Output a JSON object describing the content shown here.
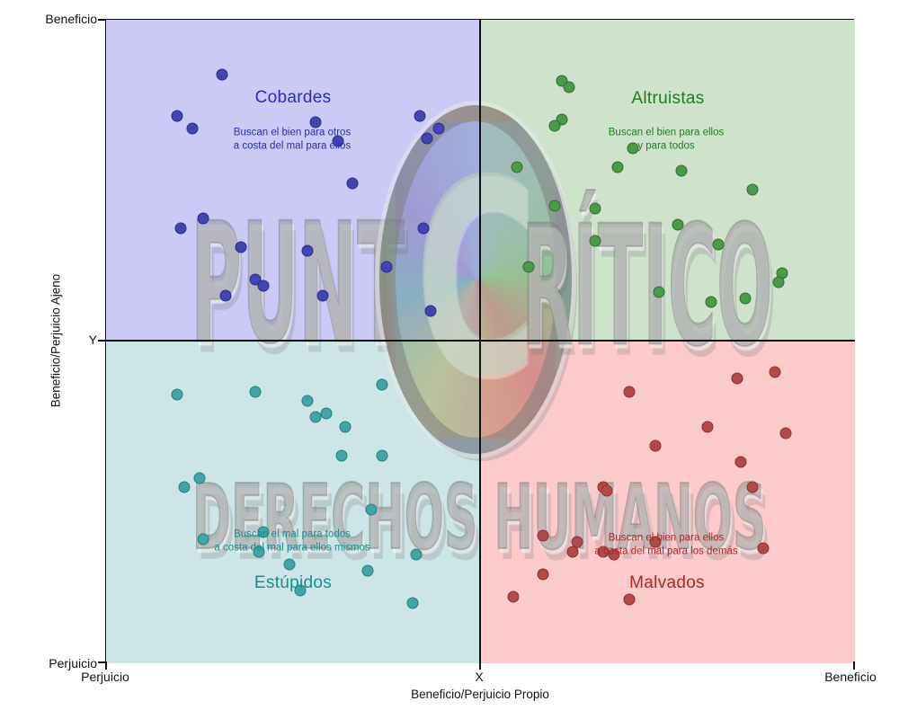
{
  "axes": {
    "x": {
      "title": "Beneficio/Perjuicio Propio",
      "tick_left": "Perjuicio",
      "tick_center": "X",
      "tick_right": "Beneficio"
    },
    "y": {
      "title": "Beneficio/Perjuicio Ajeno",
      "tick_top": "Beneficio",
      "tick_center": "Y",
      "tick_bottom": "Perjuicio"
    }
  },
  "quadrants": {
    "cobardes": {
      "title": "Cobardes",
      "subtitle_line1": "Buscan el bien para otros",
      "subtitle_line2": "a costa del mal para ellos",
      "bg": "#cacaf5",
      "text_color": "#2c2cae"
    },
    "altruistas": {
      "title": "Altruistas",
      "subtitle_line1": "Buscan el bien para ellos",
      "subtitle_line2": "y para todos",
      "bg": "#cfe2cc",
      "text_color": "#1e7e1e"
    },
    "estupidos": {
      "title": "Estúpidos",
      "subtitle_line1": "Buscan el mal para todos",
      "subtitle_line2": "a costa del mal para ellos mismos",
      "bg": "#cde5e6",
      "text_color": "#149090"
    },
    "malvados": {
      "title": "Malvados",
      "subtitle_line1": "Buscan el bien para ellos",
      "subtitle_line2": "a costa del mal para los demás",
      "bg": "#fbcbcb",
      "text_color": "#b32424"
    }
  },
  "watermark": {
    "brand_left": "PUNT",
    "logo_letter": "C",
    "brand_right": "RÍTICO",
    "footer": "DERECHOS HUMANOS"
  },
  "chart_data": {
    "type": "scatter",
    "title": "",
    "xlabel": "Beneficio/Perjuicio Propio",
    "ylabel": "Beneficio/Perjuicio Ajeno",
    "x_ticks": [
      "Perjuicio",
      "X",
      "Beneficio"
    ],
    "y_ticks": [
      "Perjuicio",
      "Y",
      "Beneficio"
    ],
    "xlim": [
      -1,
      1
    ],
    "ylim": [
      -1,
      1
    ],
    "grid": false,
    "legend": "none",
    "quadrant_labels": [
      "Cobardes",
      "Altruistas",
      "Estúpidos",
      "Malvados"
    ],
    "series": [
      {
        "name": "Cobardes",
        "color": "#4244b4",
        "edge_color": "#2b2d8c",
        "points": [
          [
            -0.69,
            0.83
          ],
          [
            -0.81,
            0.7
          ],
          [
            -0.77,
            0.66
          ],
          [
            -0.44,
            0.68
          ],
          [
            -0.38,
            0.62
          ],
          [
            -0.16,
            0.7
          ],
          [
            -0.11,
            0.66
          ],
          [
            -0.14,
            0.63
          ],
          [
            -0.34,
            0.49
          ],
          [
            -0.74,
            0.38
          ],
          [
            -0.8,
            0.35
          ],
          [
            -0.64,
            0.29
          ],
          [
            -0.46,
            0.28
          ],
          [
            -0.6,
            0.19
          ],
          [
            -0.58,
            0.17
          ],
          [
            -0.68,
            0.14
          ],
          [
            -0.42,
            0.14
          ],
          [
            -0.25,
            0.23
          ],
          [
            -0.15,
            0.35
          ],
          [
            -0.13,
            0.09
          ]
        ]
      },
      {
        "name": "Altruistas",
        "color": "#4a9a4a",
        "edge_color": "#2f7030",
        "points": [
          [
            0.22,
            0.81
          ],
          [
            0.24,
            0.79
          ],
          [
            0.22,
            0.69
          ],
          [
            0.2,
            0.67
          ],
          [
            0.41,
            0.6
          ],
          [
            0.37,
            0.54
          ],
          [
            0.1,
            0.54
          ],
          [
            0.54,
            0.53
          ],
          [
            0.73,
            0.47
          ],
          [
            0.2,
            0.42
          ],
          [
            0.31,
            0.41
          ],
          [
            0.53,
            0.36
          ],
          [
            0.31,
            0.31
          ],
          [
            0.64,
            0.3
          ],
          [
            0.13,
            0.23
          ],
          [
            0.81,
            0.21
          ],
          [
            0.8,
            0.18
          ],
          [
            0.48,
            0.15
          ],
          [
            0.71,
            0.13
          ],
          [
            0.62,
            0.12
          ]
        ]
      },
      {
        "name": "Estúpidos",
        "color": "#3fa5a5",
        "edge_color": "#277f80",
        "points": [
          [
            -0.26,
            -0.14
          ],
          [
            -0.6,
            -0.16
          ],
          [
            -0.81,
            -0.17
          ],
          [
            -0.46,
            -0.19
          ],
          [
            -0.44,
            -0.24
          ],
          [
            -0.41,
            -0.23
          ],
          [
            -0.36,
            -0.27
          ],
          [
            -0.37,
            -0.36
          ],
          [
            -0.26,
            -0.36
          ],
          [
            -0.75,
            -0.43
          ],
          [
            -0.79,
            -0.46
          ],
          [
            -0.29,
            -0.53
          ],
          [
            -0.58,
            -0.6
          ],
          [
            -0.74,
            -0.62
          ],
          [
            -0.59,
            -0.66
          ],
          [
            -0.17,
            -0.67
          ],
          [
            -0.51,
            -0.7
          ],
          [
            -0.3,
            -0.72
          ],
          [
            -0.48,
            -0.78
          ],
          [
            -0.18,
            -0.82
          ]
        ]
      },
      {
        "name": "Malvados",
        "color": "#b14a4a",
        "edge_color": "#8f3030",
        "points": [
          [
            0.79,
            -0.1
          ],
          [
            0.69,
            -0.12
          ],
          [
            0.4,
            -0.16
          ],
          [
            0.61,
            -0.27
          ],
          [
            0.82,
            -0.29
          ],
          [
            0.47,
            -0.33
          ],
          [
            0.7,
            -0.38
          ],
          [
            0.33,
            -0.46
          ],
          [
            0.34,
            -0.47
          ],
          [
            0.73,
            -0.46
          ],
          [
            0.17,
            -0.61
          ],
          [
            0.26,
            -0.63
          ],
          [
            0.25,
            -0.66
          ],
          [
            0.33,
            -0.66
          ],
          [
            0.36,
            -0.67
          ],
          [
            0.47,
            -0.63
          ],
          [
            0.76,
            -0.65
          ],
          [
            0.17,
            -0.73
          ],
          [
            0.09,
            -0.8
          ],
          [
            0.4,
            -0.81
          ]
        ]
      }
    ]
  }
}
